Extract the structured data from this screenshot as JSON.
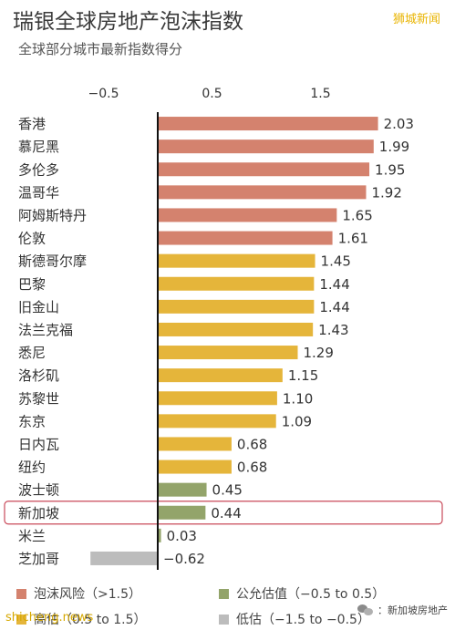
{
  "title": "瑞银全球房地产泡沫指数",
  "subtitle": "全球部分城市最新指数得分",
  "watermark_top": "狮城新闻",
  "watermark_bottom_left": "shicheng.news",
  "watermark_bottom_right": "新加坡房地产",
  "watermark_bottom_right_prefix": "：",
  "highlighted_category": "新加坡",
  "colors": {
    "bubble": "#d4826e",
    "overvalued": "#e5b53a",
    "fair": "#93a46a",
    "undervalued": "#bcbcbc",
    "highlight": "#c94a5a"
  },
  "legend": [
    {
      "label": "泡沫风险（>1.5）",
      "color_key": "bubble"
    },
    {
      "label": "公允估值（−0.5 to 0.5）",
      "color_key": "fair"
    },
    {
      "label": "高估（0.5 to 1.5）",
      "color_key": "overvalued"
    },
    {
      "label": "低估（−1.5 to −0.5）",
      "color_key": "undervalued"
    }
  ],
  "chart_data": {
    "type": "bar",
    "orientation": "horizontal",
    "title": "瑞银全球房地产泡沫指数",
    "subtitle": "全球部分城市最新指数得分",
    "xlim": [
      -0.75,
      2.15
    ],
    "xticks": [
      "−0.5",
      "0.5",
      "1.5"
    ],
    "xtick_values": [
      -0.5,
      0.5,
      1.5
    ],
    "grid": false,
    "legend_position": "bottom",
    "categories": [
      "香港",
      "慕尼黑",
      "多伦多",
      "温哥华",
      "阿姆斯特丹",
      "伦敦",
      "斯德哥尔摩",
      "巴黎",
      "旧金山",
      "法兰克福",
      "悉尼",
      "洛杉矶",
      "苏黎世",
      "东京",
      "日内瓦",
      "纽约",
      "波士顿",
      "新加坡",
      "米兰",
      "芝加哥"
    ],
    "values": [
      2.03,
      1.99,
      1.95,
      1.92,
      1.65,
      1.61,
      1.45,
      1.44,
      1.44,
      1.43,
      1.29,
      1.15,
      1.1,
      1.09,
      0.68,
      0.68,
      0.45,
      0.44,
      0.03,
      -0.62
    ],
    "value_labels": [
      "2.03",
      "1.99",
      "1.95",
      "1.92",
      "1.65",
      "1.61",
      "1.45",
      "1.44",
      "1.44",
      "1.43",
      "1.29",
      "1.15",
      "1.10",
      "1.09",
      "0.68",
      "0.68",
      "0.45",
      "0.44",
      "0.03",
      "−0.62"
    ],
    "band": [
      "bubble",
      "bubble",
      "bubble",
      "bubble",
      "bubble",
      "bubble",
      "overvalued",
      "overvalued",
      "overvalued",
      "overvalued",
      "overvalued",
      "overvalued",
      "overvalued",
      "overvalued",
      "overvalued",
      "overvalued",
      "fair",
      "fair",
      "fair",
      "undervalued"
    ]
  }
}
